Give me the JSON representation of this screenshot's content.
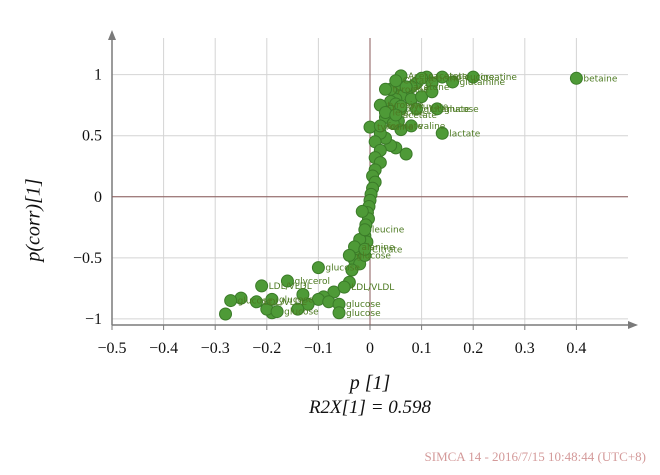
{
  "chart_data": {
    "type": "scatter",
    "title": "",
    "xlabel": "p [1]",
    "ylabel": "p(corr)[1]",
    "subtitle": "R2X[1] = 0.598",
    "footer": "SIMCA 14 - 2016/7/15 10:48:44 (UTC+8)",
    "xlim": [
      -0.5,
      0.5
    ],
    "ylim": [
      -1.05,
      1.3
    ],
    "xticks": [
      -0.5,
      -0.4,
      -0.3,
      -0.2,
      -0.1,
      0,
      0.1,
      0.2,
      0.3,
      0.4
    ],
    "xtick_labels": [
      "−0.5",
      "−0.4",
      "−0.3",
      "−0.2",
      "−0.1",
      "0",
      "0.1",
      "0.2",
      "0.3",
      "0.4"
    ],
    "yticks": [
      -1,
      -0.5,
      0,
      0.5,
      1
    ],
    "ytick_labels": [
      "−1",
      "−0.5",
      "0",
      "0.5",
      "1"
    ],
    "grid": true,
    "marker_color": "#4e9a37",
    "marker_edge": "#3a7a28",
    "label_color": "#4d7a22",
    "points": [
      {
        "x": 0.4,
        "y": 0.97,
        "label": "betaine"
      },
      {
        "x": 0.2,
        "y": 0.98,
        "label": "creatine"
      },
      {
        "x": 0.16,
        "y": 0.94,
        "label": "glutamine"
      },
      {
        "x": 0.13,
        "y": 0.72,
        "label": "glucose"
      },
      {
        "x": 0.14,
        "y": 0.52,
        "label": "lactate"
      },
      {
        "x": 0.08,
        "y": 0.58,
        "label": "valine"
      },
      {
        "x": 0.1,
        "y": 0.97,
        "label": "leucine"
      },
      {
        "x": 0.14,
        "y": 0.98,
        "label": "isoleucine"
      },
      {
        "x": 0.06,
        "y": 0.99,
        "label": "Acetoacetate"
      },
      {
        "x": 0.05,
        "y": 0.95,
        "label": "Citrate"
      },
      {
        "x": 0.03,
        "y": 0.88,
        "label": "tyrosine"
      },
      {
        "x": 0.07,
        "y": 0.9,
        "label": "acetone"
      },
      {
        "x": 0.02,
        "y": 0.75,
        "label": "tyrosine"
      },
      {
        "x": 0.03,
        "y": 0.69,
        "label": "leucine"
      },
      {
        "x": 0.06,
        "y": 0.74,
        "label": "pyruvate"
      },
      {
        "x": 0.09,
        "y": 0.72,
        "label": "glutamate"
      },
      {
        "x": 0.05,
        "y": 0.67,
        "label": "acetate"
      },
      {
        "x": 0.0,
        "y": 0.57,
        "label": "tyrosine"
      },
      {
        "x": 0.02,
        "y": 0.58,
        "label": "formate"
      },
      {
        "x": -0.01,
        "y": -0.27,
        "label": "leucine"
      },
      {
        "x": -0.03,
        "y": -0.41,
        "label": "alanine"
      },
      {
        "x": -0.01,
        "y": -0.43,
        "label": "Citrate"
      },
      {
        "x": -0.04,
        "y": -0.48,
        "label": "glucose"
      },
      {
        "x": -0.1,
        "y": -0.58,
        "label": "glucose"
      },
      {
        "x": -0.16,
        "y": -0.69,
        "label": "glycerol"
      },
      {
        "x": -0.21,
        "y": -0.73,
        "label": "LDL/VLDL"
      },
      {
        "x": -0.05,
        "y": -0.74,
        "label": "LDL/VLDL"
      },
      {
        "x": -0.19,
        "y": -0.84,
        "label": "glucose"
      },
      {
        "x": -0.27,
        "y": -0.85,
        "label": "glucose"
      },
      {
        "x": -0.22,
        "y": -0.86,
        "label": "LDL/VLDL"
      },
      {
        "x": -0.06,
        "y": -0.88,
        "label": "glucose"
      },
      {
        "x": -0.18,
        "y": -0.94,
        "label": "glucose"
      },
      {
        "x": -0.06,
        "y": -0.95,
        "label": "glucose"
      },
      {
        "x": 0.11,
        "y": 0.98,
        "label": ""
      },
      {
        "x": 0.12,
        "y": 0.93,
        "label": ""
      },
      {
        "x": 0.09,
        "y": 0.93,
        "label": ""
      },
      {
        "x": 0.08,
        "y": 0.9,
        "label": ""
      },
      {
        "x": 0.07,
        "y": 0.86,
        "label": ""
      },
      {
        "x": 0.06,
        "y": 0.83,
        "label": ""
      },
      {
        "x": 0.05,
        "y": 0.8,
        "label": ""
      },
      {
        "x": 0.04,
        "y": 0.78,
        "label": ""
      },
      {
        "x": 0.05,
        "y": 0.76,
        "label": ""
      },
      {
        "x": 0.06,
        "y": 0.72,
        "label": ""
      },
      {
        "x": 0.04,
        "y": 0.7,
        "label": ""
      },
      {
        "x": 0.03,
        "y": 0.65,
        "label": ""
      },
      {
        "x": 0.08,
        "y": 0.8,
        "label": ""
      },
      {
        "x": 0.1,
        "y": 0.82,
        "label": ""
      },
      {
        "x": 0.12,
        "y": 0.86,
        "label": ""
      },
      {
        "x": 0.04,
        "y": 0.88,
        "label": ""
      },
      {
        "x": 0.06,
        "y": 0.92,
        "label": ""
      },
      {
        "x": 0.05,
        "y": 0.4,
        "label": ""
      },
      {
        "x": 0.04,
        "y": 0.42,
        "label": ""
      },
      {
        "x": 0.03,
        "y": 0.48,
        "label": ""
      },
      {
        "x": 0.02,
        "y": 0.52,
        "label": ""
      },
      {
        "x": 0.01,
        "y": 0.45,
        "label": ""
      },
      {
        "x": 0.02,
        "y": 0.38,
        "label": ""
      },
      {
        "x": 0.01,
        "y": 0.32,
        "label": ""
      },
      {
        "x": 0.02,
        "y": 0.28,
        "label": ""
      },
      {
        "x": 0.01,
        "y": 0.22,
        "label": ""
      },
      {
        "x": 0.005,
        "y": 0.17,
        "label": ""
      },
      {
        "x": 0.01,
        "y": 0.12,
        "label": ""
      },
      {
        "x": 0.005,
        "y": 0.07,
        "label": ""
      },
      {
        "x": 0.002,
        "y": 0.02,
        "label": ""
      },
      {
        "x": 0.0,
        "y": -0.03,
        "label": ""
      },
      {
        "x": -0.002,
        "y": -0.08,
        "label": ""
      },
      {
        "x": -0.005,
        "y": -0.13,
        "label": ""
      },
      {
        "x": -0.003,
        "y": -0.18,
        "label": ""
      },
      {
        "x": -0.008,
        "y": -0.23,
        "label": ""
      },
      {
        "x": -0.01,
        "y": -0.32,
        "label": ""
      },
      {
        "x": -0.006,
        "y": -0.37,
        "label": ""
      },
      {
        "x": -0.02,
        "y": -0.35,
        "label": ""
      },
      {
        "x": -0.025,
        "y": -0.45,
        "label": ""
      },
      {
        "x": -0.03,
        "y": -0.52,
        "label": ""
      },
      {
        "x": -0.02,
        "y": -0.55,
        "label": ""
      },
      {
        "x": -0.01,
        "y": -0.48,
        "label": ""
      },
      {
        "x": -0.035,
        "y": -0.6,
        "label": ""
      },
      {
        "x": -0.015,
        "y": -0.12,
        "label": ""
      },
      {
        "x": -0.04,
        "y": -0.7,
        "label": ""
      },
      {
        "x": -0.07,
        "y": -0.78,
        "label": ""
      },
      {
        "x": -0.09,
        "y": -0.82,
        "label": ""
      },
      {
        "x": -0.1,
        "y": -0.84,
        "label": ""
      },
      {
        "x": -0.08,
        "y": -0.86,
        "label": ""
      },
      {
        "x": -0.12,
        "y": -0.88,
        "label": ""
      },
      {
        "x": -0.14,
        "y": -0.92,
        "label": ""
      },
      {
        "x": -0.19,
        "y": -0.95,
        "label": ""
      },
      {
        "x": -0.2,
        "y": -0.92,
        "label": ""
      },
      {
        "x": -0.25,
        "y": -0.83,
        "label": ""
      },
      {
        "x": -0.28,
        "y": -0.96,
        "label": ""
      },
      {
        "x": -0.13,
        "y": -0.8,
        "label": ""
      },
      {
        "x": 0.07,
        "y": 0.35,
        "label": ""
      },
      {
        "x": 0.06,
        "y": 0.55,
        "label": ""
      },
      {
        "x": 0.055,
        "y": 0.62,
        "label": ""
      },
      {
        "x": 0.045,
        "y": 0.6,
        "label": ""
      }
    ]
  }
}
